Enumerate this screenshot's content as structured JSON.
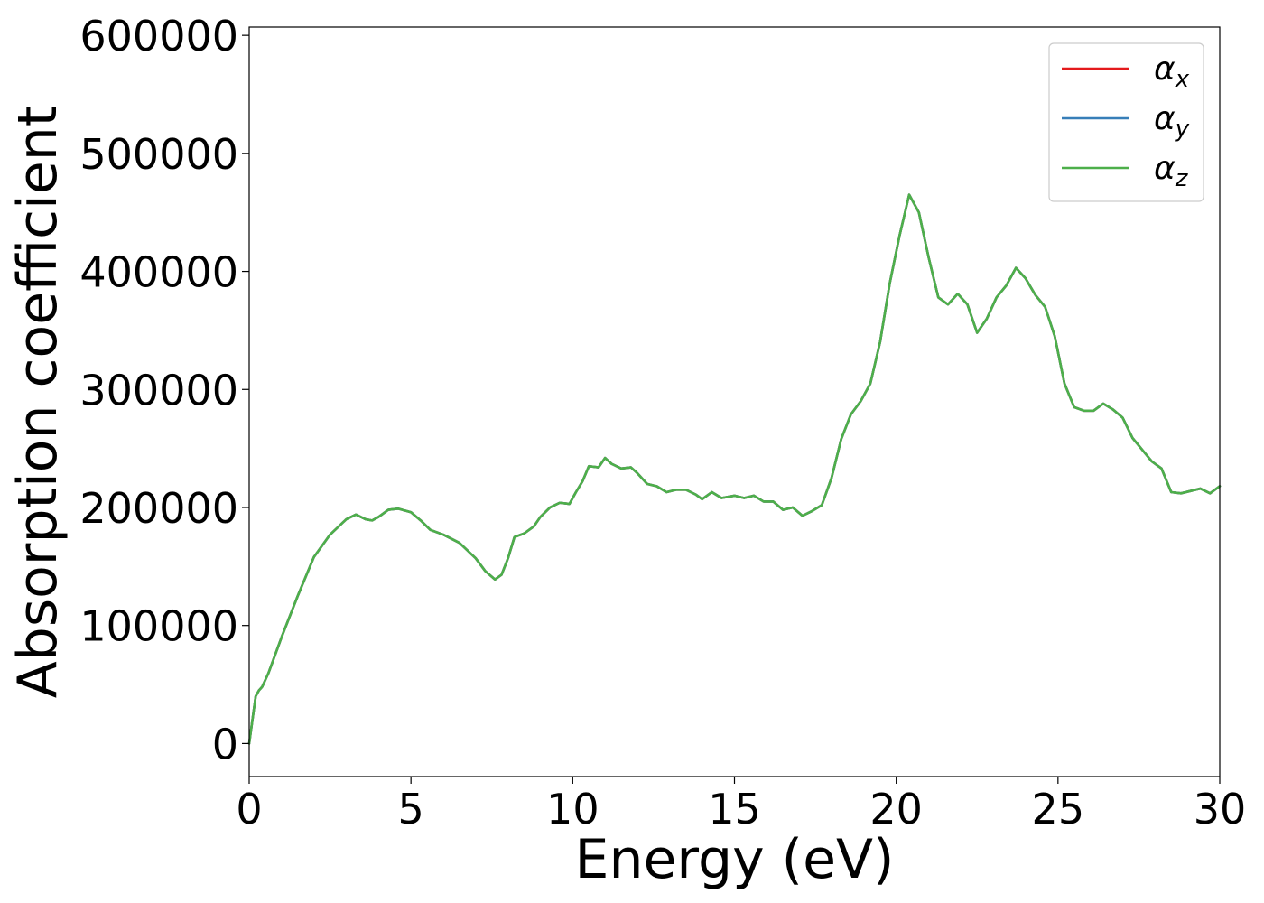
{
  "chart_data": {
    "type": "line",
    "title": "",
    "xlabel": "Energy (eV)",
    "ylabel": "Absorption coefficient",
    "xlim": [
      0,
      30
    ],
    "ylim": [
      -28000,
      607000
    ],
    "xticks": [
      0,
      5,
      10,
      15,
      20,
      25,
      30
    ],
    "xtick_labels": [
      "0",
      "5",
      "10",
      "15",
      "20",
      "25",
      "30"
    ],
    "yticks": [
      0,
      100000,
      200000,
      300000,
      400000,
      500000,
      600000
    ],
    "ytick_labels": [
      "0",
      "100000",
      "200000",
      "300000",
      "400000",
      "500000",
      "600000"
    ],
    "grid": false,
    "legend_position": "top-right",
    "x": [
      0,
      0.1,
      0.2,
      0.3,
      0.4,
      0.6,
      0.8,
      1.0,
      1.5,
      2.0,
      2.5,
      3.0,
      3.3,
      3.6,
      3.8,
      4.0,
      4.3,
      4.6,
      5.0,
      5.3,
      5.6,
      6.0,
      6.5,
      7.0,
      7.3,
      7.6,
      7.8,
      8.0,
      8.2,
      8.5,
      8.8,
      9.0,
      9.3,
      9.6,
      9.9,
      10.1,
      10.3,
      10.5,
      10.8,
      11.0,
      11.2,
      11.5,
      11.8,
      12.0,
      12.3,
      12.6,
      12.9,
      13.2,
      13.5,
      13.8,
      14.0,
      14.3,
      14.6,
      15.0,
      15.3,
      15.6,
      15.9,
      16.2,
      16.5,
      16.8,
      17.1,
      17.4,
      17.7,
      18.0,
      18.3,
      18.6,
      18.9,
      19.2,
      19.5,
      19.8,
      20.1,
      20.4,
      20.7,
      21.0,
      21.3,
      21.6,
      21.9,
      22.2,
      22.5,
      22.8,
      23.1,
      23.4,
      23.7,
      24.0,
      24.3,
      24.6,
      24.9,
      25.2,
      25.5,
      25.8,
      26.1,
      26.4,
      26.7,
      27.0,
      27.3,
      27.6,
      27.9,
      28.2,
      28.5,
      28.8,
      29.1,
      29.4,
      29.7,
      30.0
    ],
    "series": [
      {
        "name": "α_x",
        "color": "#e41a1c",
        "values": [
          0,
          20000,
          40000,
          45000,
          48000,
          60000,
          75000,
          90000,
          125000,
          158000,
          177000,
          190000,
          194000,
          190000,
          189000,
          192000,
          198000,
          199000,
          196000,
          189000,
          181000,
          177000,
          170000,
          157000,
          146000,
          139000,
          143000,
          157000,
          175000,
          178000,
          184000,
          192000,
          200000,
          204000,
          203000,
          213000,
          222000,
          235000,
          234000,
          242000,
          237000,
          233000,
          234000,
          229000,
          220000,
          218000,
          213000,
          215000,
          215000,
          211000,
          207000,
          213000,
          208000,
          210000,
          208000,
          210000,
          205000,
          205000,
          198000,
          200000,
          193000,
          197000,
          202000,
          225000,
          258000,
          279000,
          290000,
          305000,
          340000,
          390000,
          430000,
          465000,
          450000,
          412000,
          378000,
          372000,
          381000,
          372000,
          348000,
          360000,
          378000,
          388000,
          403000,
          394000,
          380000,
          370000,
          345000,
          305000,
          285000,
          282000,
          282000,
          288000,
          283000,
          276000,
          259000,
          249000,
          239000,
          233000,
          213000,
          212000,
          214000,
          216000,
          212000,
          218000
        ]
      },
      {
        "name": "α_y",
        "color": "#377eb8",
        "values": [
          0,
          20000,
          40000,
          45000,
          48000,
          60000,
          75000,
          90000,
          125000,
          158000,
          177000,
          190000,
          194000,
          190000,
          189000,
          192000,
          198000,
          199000,
          196000,
          189000,
          181000,
          177000,
          170000,
          157000,
          146000,
          139000,
          143000,
          157000,
          175000,
          178000,
          184000,
          192000,
          200000,
          204000,
          203000,
          213000,
          222000,
          235000,
          234000,
          242000,
          237000,
          233000,
          234000,
          229000,
          220000,
          218000,
          213000,
          215000,
          215000,
          211000,
          207000,
          213000,
          208000,
          210000,
          208000,
          210000,
          205000,
          205000,
          198000,
          200000,
          193000,
          197000,
          202000,
          225000,
          258000,
          279000,
          290000,
          305000,
          340000,
          390000,
          430000,
          465000,
          450000,
          412000,
          378000,
          372000,
          381000,
          372000,
          348000,
          360000,
          378000,
          388000,
          403000,
          394000,
          380000,
          370000,
          345000,
          305000,
          285000,
          282000,
          282000,
          288000,
          283000,
          276000,
          259000,
          249000,
          239000,
          233000,
          213000,
          212000,
          214000,
          216000,
          212000,
          218000
        ]
      },
      {
        "name": "α_z",
        "color": "#4daf4a",
        "values": [
          0,
          20000,
          40000,
          45000,
          48000,
          60000,
          75000,
          90000,
          125000,
          158000,
          177000,
          190000,
          194000,
          190000,
          189000,
          192000,
          198000,
          199000,
          196000,
          189000,
          181000,
          177000,
          170000,
          157000,
          146000,
          139000,
          143000,
          157000,
          175000,
          178000,
          184000,
          192000,
          200000,
          204000,
          203000,
          213000,
          222000,
          235000,
          234000,
          242000,
          237000,
          233000,
          234000,
          229000,
          220000,
          218000,
          213000,
          215000,
          215000,
          211000,
          207000,
          213000,
          208000,
          210000,
          208000,
          210000,
          205000,
          205000,
          198000,
          200000,
          193000,
          197000,
          202000,
          225000,
          258000,
          279000,
          290000,
          305000,
          340000,
          390000,
          430000,
          465000,
          450000,
          412000,
          378000,
          372000,
          381000,
          372000,
          348000,
          360000,
          378000,
          388000,
          403000,
          394000,
          380000,
          370000,
          345000,
          305000,
          285000,
          282000,
          282000,
          288000,
          283000,
          276000,
          259000,
          249000,
          239000,
          233000,
          213000,
          212000,
          214000,
          216000,
          212000,
          218000
        ]
      }
    ]
  }
}
